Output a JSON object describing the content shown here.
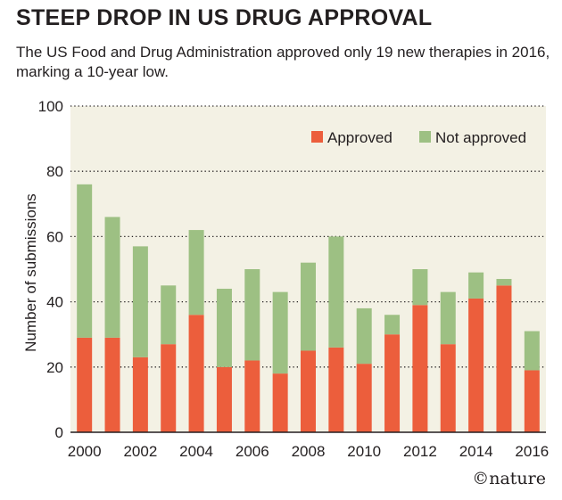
{
  "title": "STEEP DROP IN US DRUG APPROVAL",
  "subtitle": "The US Food and Drug Administration approved only 19 new therapies in 2016, marking a 10-year low.",
  "credit": "©nature",
  "chart_data": {
    "type": "bar",
    "stacked": true,
    "categories": [
      "2000",
      "2001",
      "2002",
      "2003",
      "2004",
      "2005",
      "2006",
      "2007",
      "2008",
      "2009",
      "2010",
      "2011",
      "2012",
      "2013",
      "2014",
      "2015",
      "2016"
    ],
    "x_tick_labels": [
      "2000",
      "",
      "2002",
      "",
      "2004",
      "",
      "2006",
      "",
      "2008",
      "",
      "2010",
      "",
      "2012",
      "",
      "2014",
      "",
      "2016"
    ],
    "series": [
      {
        "name": "Approved",
        "color": "#ec5e3c",
        "values": [
          29,
          29,
          23,
          27,
          36,
          20,
          22,
          18,
          25,
          26,
          21,
          30,
          39,
          27,
          41,
          45,
          19
        ]
      },
      {
        "name": "Not approved",
        "color": "#9dc083",
        "values": [
          47,
          37,
          34,
          18,
          26,
          24,
          28,
          25,
          27,
          34,
          17,
          6,
          11,
          16,
          8,
          2,
          12
        ]
      }
    ],
    "xlabel": "",
    "ylabel": "Number of submissions",
    "ylim": [
      0,
      100
    ],
    "yticks": [
      0,
      20,
      40,
      60,
      80,
      100
    ],
    "grid": true,
    "legend": "top-right",
    "plot_background": "#f3f1e4"
  }
}
